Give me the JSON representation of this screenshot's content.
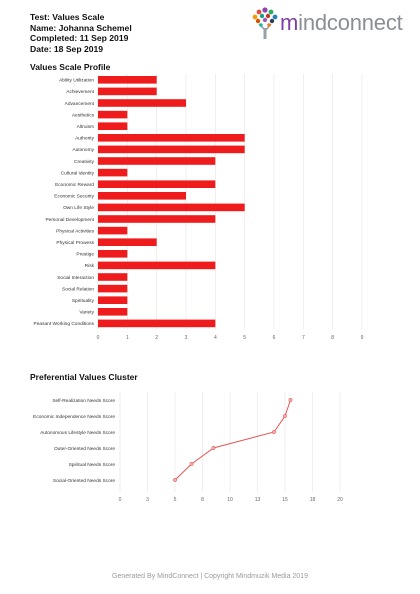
{
  "header": {
    "test_line": "Test: Values Scale",
    "name_line": "Name: Johanna Schemel",
    "completed_line": "Completed: 11 Sep 2019",
    "date_line": "Date: 18 Sep 2019"
  },
  "logo": {
    "text_m": "m",
    "text_rest": "indconnect",
    "icon": "tree-icon"
  },
  "sections": {
    "profile_title": "Values Scale Profile",
    "cluster_title": "Preferential Values Cluster"
  },
  "footer": {
    "text": "Generated By MindConnect | Copyright Mindmuzik Media 2019"
  },
  "colors": {
    "bar": "#ee1c1c",
    "line": "#e25454",
    "grid": "#e5e5e5",
    "text": "#333333"
  },
  "chart_data": [
    {
      "type": "bar",
      "orientation": "horizontal",
      "title": "Values Scale Profile",
      "categories": [
        "Ability Utilization",
        "Achievement",
        "Advancement",
        "Aesthetics",
        "Altruism",
        "Authority",
        "Autonomy",
        "Creativity",
        "Cultural Identity",
        "Economic Reward",
        "Economic Security",
        "Own Life Style",
        "Personal Development",
        "Physical Activities",
        "Physical Prowess",
        "Prestige",
        "Risk",
        "Social Interaction",
        "Social Relation",
        "Spirituality",
        "Variety",
        "Peasant Working Conditions"
      ],
      "values": [
        2,
        2,
        3,
        1,
        1,
        5,
        5,
        4,
        1,
        4,
        3,
        5,
        4,
        1,
        2,
        1,
        4,
        1,
        1,
        1,
        1,
        4
      ],
      "xlim": [
        0,
        9
      ],
      "xticks": [
        0,
        1,
        2,
        3,
        4,
        5,
        6,
        7,
        8,
        9
      ],
      "grid": true
    },
    {
      "type": "line",
      "title": "Preferential Values Cluster",
      "categories": [
        "Self-Realization Needs Score",
        "Economic Independence Needs Score",
        "Autonomous Lifestyle Needs Score",
        "Outer-Oriented Needs Score",
        "Spiritual Needs Score",
        "Social-Oriented Needs Score"
      ],
      "values": [
        15.5,
        15,
        14,
        8.5,
        6.5,
        5
      ],
      "xlim": [
        0,
        20
      ],
      "xticks": [
        "0",
        "3",
        "5",
        "8",
        "10",
        "13",
        "15",
        "18",
        "20"
      ],
      "grid": true
    }
  ]
}
